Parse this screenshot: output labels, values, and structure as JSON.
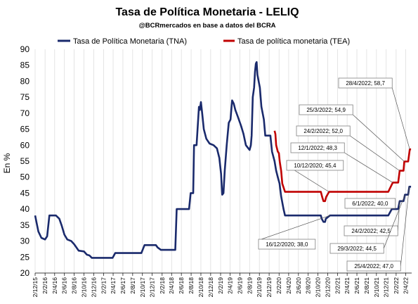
{
  "chart_data": {
    "type": "line",
    "title": "Tasa de Política Monetaria - LELIQ",
    "subtitle": "@BCRmercados en base a datos del BCRA",
    "ylabel": "En %",
    "xlabel": "",
    "ylim": [
      20,
      90
    ],
    "yticks": [
      20,
      25,
      30,
      35,
      40,
      45,
      50,
      55,
      60,
      65,
      70,
      75,
      80,
      85,
      90
    ],
    "xlim": [
      "2015-12-02",
      "2022-05-10"
    ],
    "xticks": [
      "2/12/15",
      "2/2/16",
      "2/4/16",
      "2/6/16",
      "2/8/16",
      "2/10/16",
      "2/12/16",
      "2/2/17",
      "2/4/17",
      "2/6/17",
      "2/8/17",
      "2/10/17",
      "2/12/17",
      "2/2/18",
      "2/4/18",
      "2/6/18",
      "2/8/18",
      "2/10/18",
      "2/12/18",
      "2/2/19",
      "2/4/19",
      "2/6/19",
      "2/8/19",
      "2/10/19",
      "2/12/19",
      "2/2/20",
      "2/4/20",
      "2/6/20",
      "2/8/20",
      "2/10/20",
      "2/12/20",
      "2/2/21",
      "2/4/21",
      "2/6/21",
      "2/8/21",
      "2/10/21",
      "2/12/21",
      "2/2/22",
      "2/4/22"
    ],
    "grid": "vertical",
    "legend_position": "top",
    "colors": {
      "tna": "#1a2a6c",
      "tea": "#c00000",
      "grid": "#d9d9d9",
      "box_border": "#7f7f7f"
    },
    "series": [
      {
        "name": "Tasa de Política Monetaria (TNA)",
        "key": "tna",
        "points": [
          [
            "2015-12-02",
            38
          ],
          [
            "2015-12-22",
            33
          ],
          [
            "2016-01-10",
            31
          ],
          [
            "2016-02-02",
            30.5
          ],
          [
            "2016-02-15",
            31.5
          ],
          [
            "2016-02-29",
            38
          ],
          [
            "2016-04-10",
            38
          ],
          [
            "2016-05-01",
            37
          ],
          [
            "2016-05-15",
            35
          ],
          [
            "2016-06-02",
            32
          ],
          [
            "2016-06-20",
            30.5
          ],
          [
            "2016-07-15",
            30
          ],
          [
            "2016-08-02",
            29
          ],
          [
            "2016-08-30",
            27
          ],
          [
            "2016-10-02",
            26.75
          ],
          [
            "2016-10-20",
            25.75
          ],
          [
            "2016-11-05",
            25.5
          ],
          [
            "2016-11-20",
            24.75
          ],
          [
            "2017-03-30",
            24.75
          ],
          [
            "2017-04-15",
            26.25
          ],
          [
            "2017-09-25",
            26.25
          ],
          [
            "2017-10-15",
            28.75
          ],
          [
            "2017-12-25",
            28.75
          ],
          [
            "2018-01-05",
            28
          ],
          [
            "2018-01-25",
            27.25
          ],
          [
            "2018-04-25",
            27.25
          ],
          [
            "2018-05-04",
            40
          ],
          [
            "2018-07-20",
            40
          ],
          [
            "2018-07-30",
            45
          ],
          [
            "2018-08-15",
            45
          ],
          [
            "2018-08-20",
            60
          ],
          [
            "2018-09-05",
            60
          ],
          [
            "2018-09-20",
            72
          ],
          [
            "2018-09-25",
            71
          ],
          [
            "2018-10-02",
            73.5
          ],
          [
            "2018-10-10",
            70
          ],
          [
            "2018-10-20",
            65
          ],
          [
            "2018-11-05",
            62
          ],
          [
            "2018-11-25",
            60.5
          ],
          [
            "2018-12-20",
            60
          ],
          [
            "2019-01-10",
            59
          ],
          [
            "2019-01-25",
            56
          ],
          [
            "2019-02-05",
            51
          ],
          [
            "2019-02-12",
            44.5
          ],
          [
            "2019-02-20",
            45
          ],
          [
            "2019-02-28",
            52
          ],
          [
            "2019-03-12",
            60
          ],
          [
            "2019-03-25",
            67
          ],
          [
            "2019-04-05",
            68
          ],
          [
            "2019-04-15",
            74
          ],
          [
            "2019-04-25",
            73
          ],
          [
            "2019-05-05",
            71
          ],
          [
            "2019-05-20",
            69
          ],
          [
            "2019-06-10",
            66
          ],
          [
            "2019-06-25",
            63.5
          ],
          [
            "2019-07-10",
            60
          ],
          [
            "2019-07-25",
            59
          ],
          [
            "2019-08-02",
            58.5
          ],
          [
            "2019-08-10",
            60
          ],
          [
            "2019-08-15",
            63
          ],
          [
            "2019-08-22",
            75
          ],
          [
            "2019-08-30",
            78
          ],
          [
            "2019-09-05",
            83
          ],
          [
            "2019-09-10",
            85.5
          ],
          [
            "2019-09-15",
            86
          ],
          [
            "2019-09-20",
            82
          ],
          [
            "2019-10-05",
            78
          ],
          [
            "2019-10-15",
            72
          ],
          [
            "2019-10-30",
            68
          ],
          [
            "2019-11-08",
            63
          ],
          [
            "2019-12-10",
            63
          ],
          [
            "2019-12-20",
            58
          ],
          [
            "2020-01-05",
            55
          ],
          [
            "2020-01-15",
            52
          ],
          [
            "2020-01-25",
            50
          ],
          [
            "2020-02-05",
            48
          ],
          [
            "2020-02-15",
            44
          ],
          [
            "2020-03-01",
            40
          ],
          [
            "2020-03-10",
            38
          ],
          [
            "2020-10-20",
            38
          ],
          [
            "2020-10-25",
            37
          ],
          [
            "2020-11-05",
            36
          ],
          [
            "2020-11-15",
            36
          ],
          [
            "2020-11-20",
            37
          ],
          [
            "2020-12-16",
            38
          ],
          [
            "2021-12-15",
            38
          ],
          [
            "2022-01-06",
            40
          ],
          [
            "2022-02-15",
            40
          ],
          [
            "2022-02-24",
            42.5
          ],
          [
            "2022-03-20",
            42.5
          ],
          [
            "2022-03-29",
            44.5
          ],
          [
            "2022-04-18",
            44.5
          ],
          [
            "2022-04-25",
            47
          ],
          [
            "2022-05-06",
            47
          ]
        ]
      },
      {
        "name": "Tasa de política monetaria (TEA)",
        "key": "tea",
        "points": [
          [
            "2020-01-05",
            64.5
          ],
          [
            "2020-01-10",
            63.5
          ],
          [
            "2020-01-15",
            60
          ],
          [
            "2020-01-25",
            58
          ],
          [
            "2020-02-01",
            57.5
          ],
          [
            "2020-02-06",
            55
          ],
          [
            "2020-02-15",
            52
          ],
          [
            "2020-02-22",
            48
          ],
          [
            "2020-03-10",
            45.4
          ],
          [
            "2020-10-20",
            45.4
          ],
          [
            "2020-10-28",
            43.8
          ],
          [
            "2020-11-05",
            42.5
          ],
          [
            "2020-11-15",
            42.5
          ],
          [
            "2020-11-22",
            43.8
          ],
          [
            "2020-12-10",
            45.4
          ],
          [
            "2021-12-15",
            45.4
          ],
          [
            "2022-01-12",
            48.3
          ],
          [
            "2022-02-15",
            48.3
          ],
          [
            "2022-02-24",
            52
          ],
          [
            "2022-03-20",
            52
          ],
          [
            "2022-03-25",
            54.9
          ],
          [
            "2022-04-18",
            54.9
          ],
          [
            "2022-04-28",
            58.7
          ],
          [
            "2022-05-06",
            58.7
          ]
        ]
      }
    ],
    "annotations": [
      {
        "id": "tea-2022-04-28",
        "label": "28/4/2022; 58,7",
        "series": "tea",
        "date": "2022-04-28",
        "value": 58.7
      },
      {
        "id": "tea-2022-03-25",
        "label": "25/3/2022; 54,9",
        "series": "tea",
        "date": "2022-03-25",
        "value": 54.9
      },
      {
        "id": "tea-2022-02-24",
        "label": "24/2/2022; 52,0",
        "series": "tea",
        "date": "2022-02-24",
        "value": 52.0
      },
      {
        "id": "tea-2022-01-12",
        "label": "12/1/2022; 48,3",
        "series": "tea",
        "date": "2022-01-12",
        "value": 48.3
      },
      {
        "id": "tea-2020-12-10",
        "label": "10/12/2020; 45,4",
        "series": "tea",
        "date": "2020-12-10",
        "value": 45.4
      },
      {
        "id": "tna-2022-01-06",
        "label": "6/1/2022; 40,0",
        "series": "tna",
        "date": "2022-01-06",
        "value": 40.0
      },
      {
        "id": "tna-2020-12-16",
        "label": "16/12/2020; 38,0",
        "series": "tna",
        "date": "2020-12-16",
        "value": 38.0
      },
      {
        "id": "tna-2022-02-24",
        "label": "24/2/2022; 42,5",
        "series": "tna",
        "date": "2022-02-24",
        "value": 42.5
      },
      {
        "id": "tna-2022-03-29",
        "label": "29/3/2022; 44,5",
        "series": "tna",
        "date": "2022-03-29",
        "value": 44.5
      },
      {
        "id": "tna-2022-04-25",
        "label": "25/4/2022; 47,0",
        "series": "tna",
        "date": "2022-04-25",
        "value": 47.0
      }
    ]
  }
}
